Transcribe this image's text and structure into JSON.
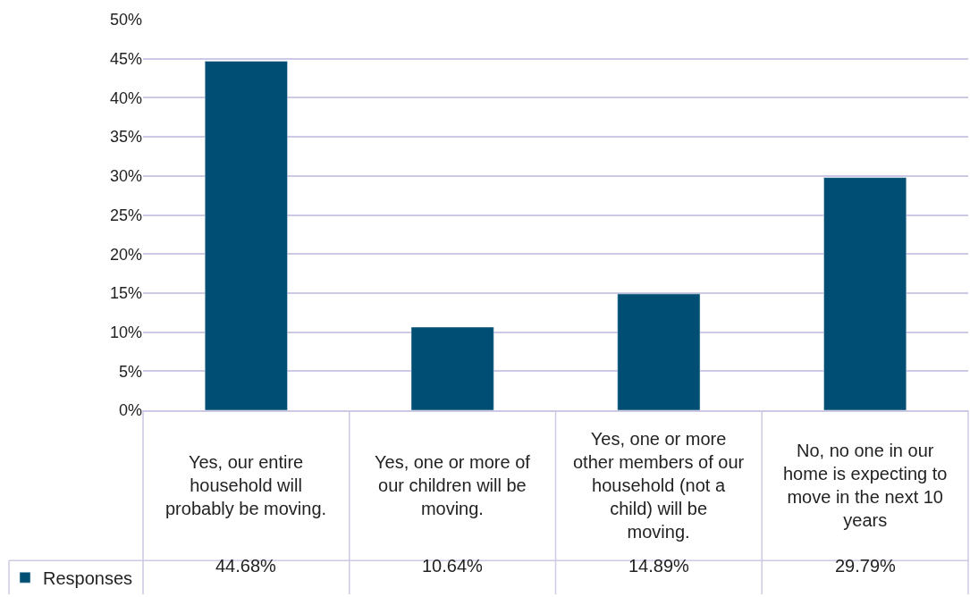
{
  "chart_data": {
    "type": "bar",
    "categories": [
      "Yes, our entire household will probably be moving.",
      "Yes, one or more of our children will be moving.",
      "Yes, one or more other members of our household (not a child) will be moving.",
      "No, no one in our home is expecting to move in the next 10 years"
    ],
    "series": [
      {
        "name": "Responses",
        "color": "#004e73",
        "values": [
          44.68,
          10.64,
          14.89,
          29.79
        ],
        "value_labels": [
          "44.68%",
          "10.64%",
          "14.89%",
          "29.79%"
        ]
      }
    ],
    "ylim": [
      0,
      50
    ],
    "yticks": [
      {
        "value": 0,
        "label": "0%"
      },
      {
        "value": 5,
        "label": "5%"
      },
      {
        "value": 10,
        "label": "10%"
      },
      {
        "value": 15,
        "label": "15%"
      },
      {
        "value": 20,
        "label": "20%"
      },
      {
        "value": 25,
        "label": "25%"
      },
      {
        "value": 30,
        "label": "30%"
      },
      {
        "value": 35,
        "label": "35%"
      },
      {
        "value": 40,
        "label": "40%"
      },
      {
        "value": 45,
        "label": "45%"
      },
      {
        "value": 50,
        "label": "50%"
      }
    ],
    "grid": "y",
    "legend": "bottom left"
  }
}
